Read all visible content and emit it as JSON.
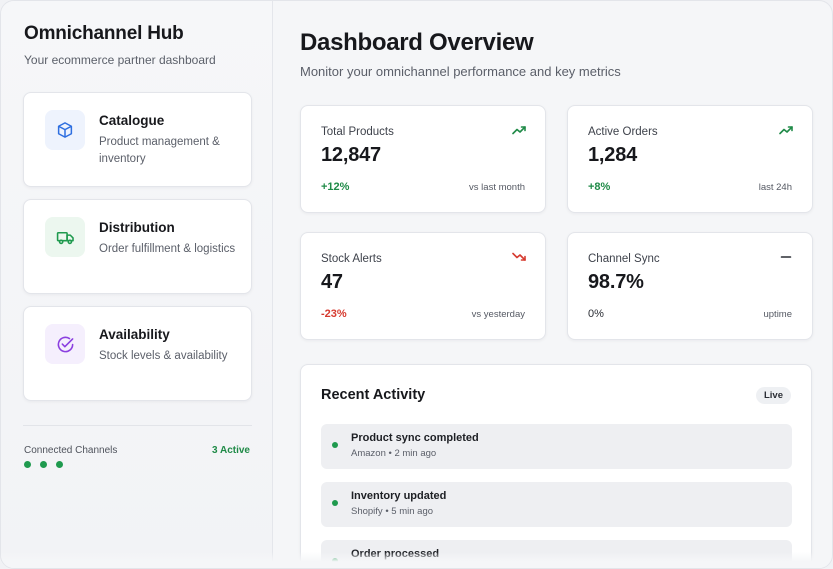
{
  "sidebar": {
    "title": "Omnichannel Hub",
    "subtitle": "Your ecommerce partner dashboard",
    "items": [
      {
        "title": "Catalogue",
        "description": "Product management & inventory",
        "icon": "box-icon",
        "color": "#2f6fe0"
      },
      {
        "title": "Distribution",
        "description": "Order fulfillment & logistics",
        "icon": "truck-icon",
        "color": "#1f9a4e"
      },
      {
        "title": "Availability",
        "description": "Stock levels & availability",
        "icon": "check-circle-icon",
        "color": "#8b3fe0"
      }
    ],
    "channels_label": "Connected Channels",
    "channels_count": "3 Active"
  },
  "main": {
    "title": "Dashboard Overview",
    "subtitle": "Monitor your omnichannel performance and key metrics"
  },
  "stats": [
    {
      "label": "Total Products",
      "value": "12,847",
      "change": "+12%",
      "period": "vs last month",
      "trend": "up",
      "color": "#1f8a47"
    },
    {
      "label": "Active Orders",
      "value": "1,284",
      "change": "+8%",
      "period": "last 24h",
      "trend": "up",
      "color": "#1f8a47"
    },
    {
      "label": "Stock Alerts",
      "value": "47",
      "change": "-23%",
      "period": "vs yesterday",
      "trend": "down",
      "color": "#d63a2f"
    },
    {
      "label": "Channel Sync",
      "value": "98.7%",
      "change": "0%",
      "period": "uptime",
      "trend": "flat",
      "color": "#2b2e35"
    }
  ],
  "activity": {
    "title": "Recent Activity",
    "badge": "Live",
    "items": [
      {
        "title": "Product sync completed",
        "meta": "Amazon • 2 min ago"
      },
      {
        "title": "Inventory updated",
        "meta": "Shopify • 5 min ago"
      },
      {
        "title": "Order processed",
        "meta": ""
      }
    ]
  }
}
